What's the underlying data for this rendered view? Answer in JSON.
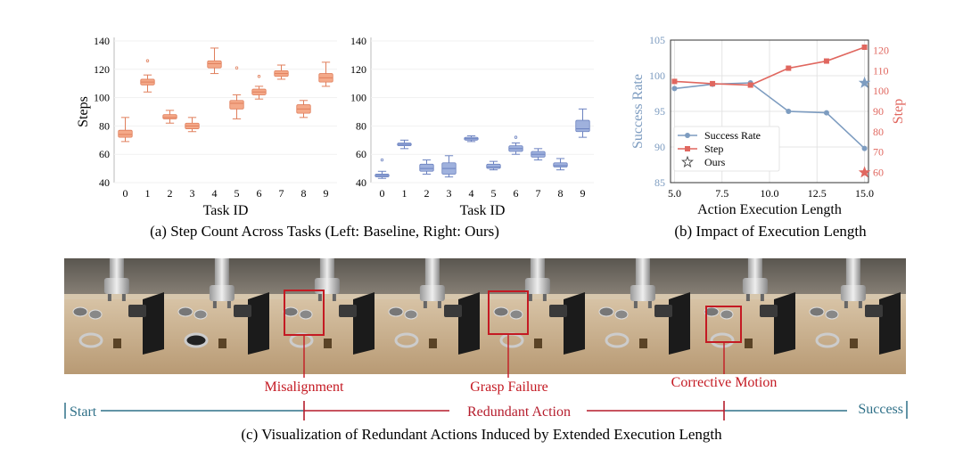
{
  "figure": {
    "panel_a_caption": "(a) Step Count Across Tasks (Left: Baseline, Right: Ours)",
    "panel_b_caption": "(b) Impact of Execution Length",
    "panel_c_caption": "(c)  Visualization of Redundant Actions Induced by Extended Execution Length"
  },
  "colors": {
    "baseline_box": "#f4a989",
    "baseline_edge": "#e07f5c",
    "ours_box": "#9fb1dd",
    "ours_edge": "#6c82c0",
    "success_line": "#7d9cc0",
    "step_line": "#e0675f",
    "timeline_blue": "#2f7088",
    "timeline_red": "#b51c2c",
    "annotation_red": "#c41a23"
  },
  "chart_data": [
    {
      "type": "box",
      "panel": "a-left",
      "xlabel": "Task ID",
      "ylabel": "Steps",
      "ylim": [
        40,
        140
      ],
      "yticks": [
        40,
        60,
        80,
        100,
        120,
        140
      ],
      "categories": [
        "0",
        "1",
        "2",
        "3",
        "4",
        "5",
        "6",
        "7",
        "8",
        "9"
      ],
      "boxes": [
        {
          "min": 69,
          "q1": 72,
          "median": 74,
          "q3": 77,
          "max": 86,
          "outliers": []
        },
        {
          "min": 104,
          "q1": 109,
          "median": 111,
          "q3": 113,
          "max": 116,
          "outliers": [
            126
          ]
        },
        {
          "min": 82,
          "q1": 85,
          "median": 86,
          "q3": 88,
          "max": 91,
          "outliers": []
        },
        {
          "min": 76,
          "q1": 78,
          "median": 80,
          "q3": 82,
          "max": 86,
          "outliers": []
        },
        {
          "min": 117,
          "q1": 121,
          "median": 124,
          "q3": 126,
          "max": 135,
          "outliers": []
        },
        {
          "min": 85,
          "q1": 92,
          "median": 96,
          "q3": 98,
          "max": 102,
          "outliers": [
            121
          ]
        },
        {
          "min": 99,
          "q1": 102,
          "median": 104,
          "q3": 106,
          "max": 108,
          "outliers": [
            115
          ]
        },
        {
          "min": 113,
          "q1": 115,
          "median": 117,
          "q3": 119,
          "max": 123,
          "outliers": []
        },
        {
          "min": 86,
          "q1": 89,
          "median": 92,
          "q3": 95,
          "max": 98,
          "outliers": []
        },
        {
          "min": 108,
          "q1": 111,
          "median": 114,
          "q3": 117,
          "max": 125,
          "outliers": []
        }
      ]
    },
    {
      "type": "box",
      "panel": "a-right",
      "xlabel": "Task ID",
      "ylabel": "",
      "ylim": [
        40,
        140
      ],
      "yticks": [
        40,
        60,
        80,
        100,
        120,
        140
      ],
      "categories": [
        "0",
        "1",
        "2",
        "3",
        "4",
        "5",
        "6",
        "7",
        "8",
        "9"
      ],
      "boxes": [
        {
          "min": 43,
          "q1": 44,
          "median": 45,
          "q3": 46,
          "max": 48,
          "outliers": [
            56
          ]
        },
        {
          "min": 64,
          "q1": 66,
          "median": 67,
          "q3": 68,
          "max": 70,
          "outliers": []
        },
        {
          "min": 46,
          "q1": 48,
          "median": 50,
          "q3": 53,
          "max": 56,
          "outliers": []
        },
        {
          "min": 44,
          "q1": 46,
          "median": 50,
          "q3": 54,
          "max": 59,
          "outliers": []
        },
        {
          "min": 69,
          "q1": 70,
          "median": 71,
          "q3": 72,
          "max": 73,
          "outliers": []
        },
        {
          "min": 49,
          "q1": 50,
          "median": 51,
          "q3": 53,
          "max": 55,
          "outliers": []
        },
        {
          "min": 60,
          "q1": 62,
          "median": 64,
          "q3": 66,
          "max": 68,
          "outliers": [
            72
          ]
        },
        {
          "min": 56,
          "q1": 58,
          "median": 60,
          "q3": 62,
          "max": 64,
          "outliers": []
        },
        {
          "min": 49,
          "q1": 51,
          "median": 52,
          "q3": 54,
          "max": 57,
          "outliers": []
        },
        {
          "min": 72,
          "q1": 76,
          "median": 78,
          "q3": 84,
          "max": 92,
          "outliers": []
        }
      ]
    },
    {
      "type": "line",
      "panel": "b",
      "xlabel": "Action Execution Length",
      "ylabel": "Success Rate",
      "ylabel_right": "Step",
      "xlim": [
        5,
        15
      ],
      "ylim": [
        85,
        105
      ],
      "ylim_right": [
        55,
        125
      ],
      "xticks": [
        "5.0",
        "7.5",
        "10.0",
        "12.5",
        "15.0"
      ],
      "yticks": [
        "85",
        "90",
        "95",
        "100",
        "105"
      ],
      "yticks_right": [
        "60",
        "70",
        "80",
        "90",
        "100",
        "110",
        "120"
      ],
      "x": [
        5,
        7,
        9,
        11,
        13,
        15
      ],
      "series": [
        {
          "name": "Success Rate",
          "axis": "left",
          "marker": "circle",
          "values": [
            98.2,
            98.8,
            99.0,
            95.0,
            94.8,
            89.8
          ]
        },
        {
          "name": "Step",
          "axis": "right",
          "marker": "square",
          "values": [
            104.7,
            103.6,
            102.9,
            111.2,
            114.7,
            121.5
          ]
        }
      ],
      "ours": [
        {
          "name": "Ours",
          "axis": "left",
          "x": 15,
          "y": 99.0
        },
        {
          "name": "Ours",
          "axis": "right",
          "x": 15,
          "y": 60
        }
      ],
      "legend": "center-left",
      "grid": true
    }
  ],
  "panel_c": {
    "annotations": [
      "Misalignment",
      "Grasp Failure",
      "Corrective Motion"
    ],
    "timeline": {
      "start": "Start",
      "middle": "Redundant Action",
      "end": "Success"
    }
  }
}
